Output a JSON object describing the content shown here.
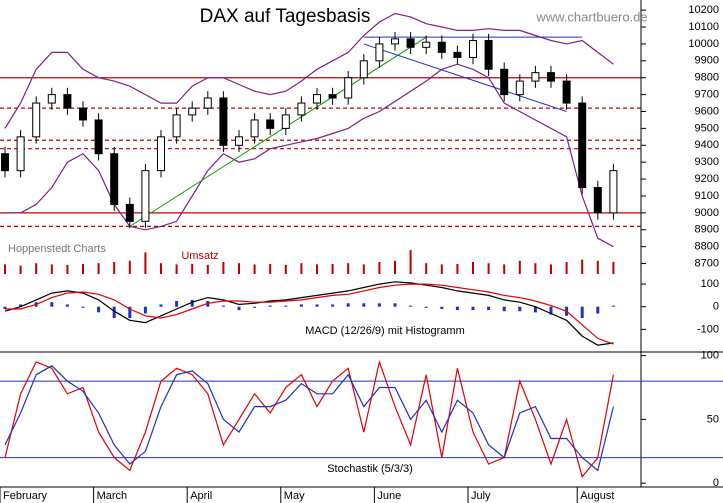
{
  "chart_data": [
    {
      "type": "candlestick",
      "title": "DAX auf Tagesbasis",
      "source": "www.chartbuero.de",
      "credit": "Hoppenstedt Charts",
      "ylim": [
        8650,
        10260
      ],
      "yticks": [
        8700,
        8800,
        8900,
        9000,
        9100,
        9200,
        9300,
        9400,
        9500,
        9600,
        9700,
        9800,
        9900,
        10000,
        10100,
        10200
      ],
      "open": [
        9350,
        9250,
        9450,
        9650,
        9700,
        9620,
        9550,
        9350,
        9050,
        8950,
        9250,
        9450,
        9580,
        9620,
        9680,
        9400,
        9450,
        9550,
        9500,
        9580,
        9650,
        9700,
        9680,
        9800,
        9900,
        10000,
        10030,
        9980,
        10010,
        9950,
        9920,
        10020,
        9850,
        9700,
        9780,
        9830,
        9780,
        9650,
        9150,
        9000
      ],
      "high": [
        9390,
        9490,
        9690,
        9740,
        9740,
        9660,
        9590,
        9390,
        9090,
        9290,
        9490,
        9620,
        9660,
        9720,
        9720,
        9490,
        9590,
        9590,
        9620,
        9690,
        9740,
        9740,
        9840,
        9940,
        10040,
        10070,
        10070,
        10050,
        10050,
        9990,
        10060,
        10060,
        9890,
        9820,
        9870,
        9870,
        9820,
        9690,
        9190,
        9290
      ],
      "low": [
        9210,
        9210,
        9410,
        9610,
        9580,
        9510,
        9310,
        9010,
        8910,
        8910,
        9210,
        9410,
        9540,
        9580,
        9360,
        9360,
        9410,
        9460,
        9460,
        9540,
        9610,
        9640,
        9640,
        9760,
        9860,
        9960,
        9940,
        9940,
        9910,
        9880,
        9880,
        9810,
        9660,
        9660,
        9740,
        9740,
        9610,
        9110,
        8960,
        8960
      ],
      "close": [
        9250,
        9450,
        9650,
        9700,
        9620,
        9550,
        9350,
        9050,
        8950,
        9250,
        9450,
        9580,
        9620,
        9680,
        9400,
        9450,
        9550,
        9500,
        9580,
        9650,
        9700,
        9680,
        9800,
        9900,
        10000,
        10030,
        9980,
        10010,
        9950,
        9920,
        10020,
        9850,
        9700,
        9780,
        9830,
        9780,
        9650,
        9150,
        9000,
        9250
      ],
      "series": [
        {
          "color": "#80207f",
          "values": [
            9500,
            9650,
            9850,
            9950,
            9950,
            9850,
            9800,
            9780,
            9750,
            9700,
            9650,
            9650,
            9750,
            9800,
            9800,
            9760,
            9720,
            9700,
            9720,
            9780,
            9850,
            9900,
            9950,
            10050,
            10130,
            10180,
            10160,
            10120,
            10100,
            10080,
            10080,
            10090,
            10080,
            10080,
            10050,
            10020,
            10000,
            10020,
            9950,
            9880
          ]
        },
        {
          "color": "#80207f",
          "values": [
            9000,
            9000,
            9050,
            9150,
            9300,
            9350,
            9250,
            9050,
            8920,
            8900,
            8920,
            8950,
            9100,
            9250,
            9350,
            9300,
            9320,
            9380,
            9400,
            9420,
            9440,
            9470,
            9500,
            9560,
            9600,
            9660,
            9720,
            9780,
            9850,
            9880,
            9850,
            9800,
            9650,
            9600,
            9550,
            9500,
            9450,
            9100,
            8850,
            8800
          ]
        }
      ],
      "hlines": [
        {
          "value": 9800,
          "color": "#c00000",
          "dashed": false
        },
        {
          "value": 9000,
          "color": "#c00000",
          "dashed": false
        },
        {
          "value": 9620,
          "color": "#c00000",
          "dashed": true
        },
        {
          "value": 9430,
          "color": "#c00000",
          "dashed": true
        },
        {
          "value": 9380,
          "color": "#c00000",
          "dashed": true
        },
        {
          "value": 8920,
          "color": "#c00000",
          "dashed": true
        }
      ],
      "trendlines": [
        {
          "from": [
            8,
            8920
          ],
          "to": [
            27,
            10040
          ],
          "color": "#00a000"
        },
        {
          "from": [
            23,
            10000
          ],
          "to": [
            36,
            9600
          ],
          "color": "#2030c0"
        },
        {
          "from": [
            23,
            10040
          ],
          "to": [
            37,
            10040
          ],
          "color": "#2030c0"
        }
      ]
    },
    {
      "type": "bar",
      "title": "Umsatz",
      "color": "#c00000",
      "ylim": [
        0,
        100
      ],
      "values": [
        40,
        35,
        45,
        40,
        38,
        42,
        45,
        50,
        55,
        90,
        45,
        40,
        42,
        38,
        50,
        45,
        40,
        42,
        38,
        45,
        40,
        42,
        45,
        40,
        50,
        55,
        100,
        45,
        40,
        42,
        50,
        45,
        40,
        55,
        45,
        40,
        50,
        60,
        55,
        50
      ]
    },
    {
      "type": "line",
      "title": "MACD (12/26/9) mit Histogramm",
      "ylim": [
        -200,
        140
      ],
      "yticks": [
        -100,
        0,
        100
      ],
      "series": [
        {
          "color": "#000000",
          "values": [
            -20,
            0,
            30,
            60,
            70,
            60,
            30,
            -20,
            -60,
            -70,
            -40,
            -10,
            20,
            40,
            30,
            10,
            15,
            25,
            30,
            40,
            50,
            60,
            70,
            85,
            100,
            110,
            105,
            95,
            85,
            70,
            60,
            50,
            30,
            20,
            0,
            -30,
            -60,
            -130,
            -170,
            -160
          ]
        },
        {
          "color": "#e00000",
          "values": [
            -10,
            -10,
            10,
            40,
            60,
            65,
            55,
            30,
            -10,
            -40,
            -50,
            -35,
            -10,
            15,
            25,
            25,
            20,
            20,
            25,
            30,
            40,
            50,
            55,
            70,
            85,
            95,
            100,
            100,
            95,
            85,
            75,
            65,
            50,
            40,
            25,
            5,
            -20,
            -80,
            -140,
            -165
          ]
        }
      ],
      "histogram": {
        "color": "#2030c0",
        "values": [
          -10,
          10,
          20,
          20,
          10,
          -5,
          -25,
          -50,
          -50,
          -30,
          10,
          25,
          30,
          25,
          5,
          -15,
          -5,
          5,
          5,
          10,
          10,
          10,
          15,
          15,
          15,
          15,
          5,
          -5,
          -10,
          -15,
          -15,
          -15,
          -20,
          -20,
          -25,
          -35,
          -40,
          -50,
          -30,
          5
        ]
      }
    },
    {
      "type": "line",
      "title": "Stochastik (5/3/3)",
      "ylim": [
        -3,
        102
      ],
      "yticks": [
        0,
        50,
        100
      ],
      "categories": [
        "February",
        null,
        null,
        null,
        null,
        null,
        "March",
        null,
        null,
        null,
        null,
        null,
        "April",
        null,
        null,
        null,
        null,
        null,
        "May",
        null,
        null,
        null,
        null,
        null,
        "June",
        null,
        null,
        null,
        null,
        null,
        "July",
        null,
        null,
        null,
        null,
        null,
        null,
        "August",
        null,
        null
      ],
      "hlines": [
        {
          "value": 80,
          "color": "#2030c0"
        },
        {
          "value": 20,
          "color": "#2030c0"
        }
      ],
      "series": [
        {
          "color": "#e00000",
          "values": [
            20,
            70,
            95,
            90,
            70,
            75,
            40,
            20,
            10,
            40,
            80,
            90,
            85,
            70,
            30,
            50,
            70,
            55,
            75,
            85,
            60,
            80,
            90,
            40,
            95,
            60,
            30,
            85,
            20,
            90,
            40,
            15,
            20,
            80,
            50,
            15,
            50,
            5,
            20,
            85
          ]
        },
        {
          "color": "#2030c0",
          "values": [
            30,
            55,
            85,
            92,
            80,
            72,
            55,
            30,
            15,
            25,
            60,
            85,
            88,
            78,
            50,
            40,
            60,
            60,
            65,
            78,
            70,
            70,
            85,
            60,
            75,
            75,
            50,
            65,
            40,
            65,
            55,
            30,
            20,
            55,
            60,
            35,
            35,
            20,
            10,
            60
          ]
        }
      ]
    }
  ]
}
